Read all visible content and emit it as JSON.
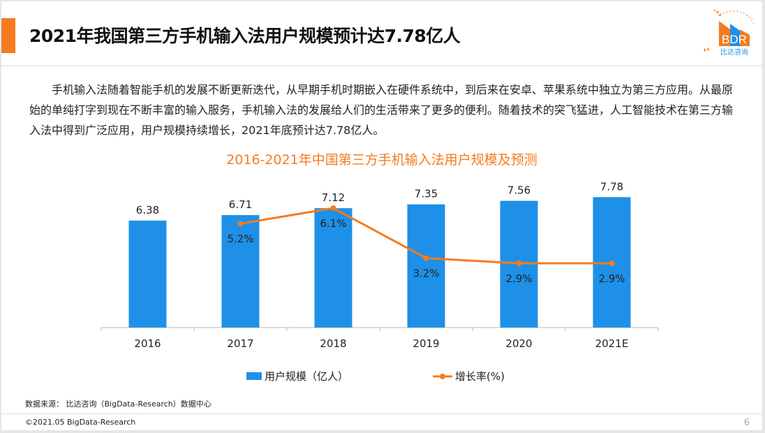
{
  "header": {
    "title": "2021年我国第三方手机输入法用户规模预计达7.78亿人",
    "logo_text": "BDR",
    "logo_subtext": "比达咨询"
  },
  "paragraph": "手机输入法随着智能手机的发展不断更新迭代，从早期手机时期嵌入在硬件系统中，到后来在安卓、苹果系统中独立为第三方应用。从最原始的单纯打字到现在不断丰富的输入服务，手机输入法的发展给人们的生活带来了更多的便利。随着技术的突飞猛进，人工智能技术在第三方输入法中得到广泛应用，用户规模持续增长，2021年底预计达7.78亿人。",
  "chart_data": {
    "type": "bar+line",
    "title": "2016-2021年中国第三方手机输入法用户规模及预测",
    "categories": [
      "2016",
      "2017",
      "2018",
      "2019",
      "2020",
      "2021E"
    ],
    "series": [
      {
        "name": "用户规模（亿人）",
        "type": "bar",
        "color": "#1e90e8",
        "values": [
          6.38,
          6.71,
          7.12,
          7.35,
          7.56,
          7.78
        ],
        "labels": [
          "6.38",
          "6.71",
          "7.12",
          "7.35",
          "7.56",
          "7.78"
        ]
      },
      {
        "name": "增长率(%)",
        "type": "line",
        "color": "#f47b20",
        "values": [
          null,
          5.2,
          6.1,
          3.2,
          2.9,
          2.9
        ],
        "labels": [
          "",
          "5.2%",
          "6.1%",
          "3.2%",
          "2.9%",
          "2.9%"
        ]
      }
    ],
    "legend": "bottom",
    "grid": false
  },
  "footer": {
    "source": "数据来源： 比达咨询（BigData-Research）数据中心",
    "copyright": "©2021.05 BigData-Research",
    "page": "6"
  },
  "colors": {
    "accent": "#f47b20",
    "bar": "#1e90e8"
  }
}
